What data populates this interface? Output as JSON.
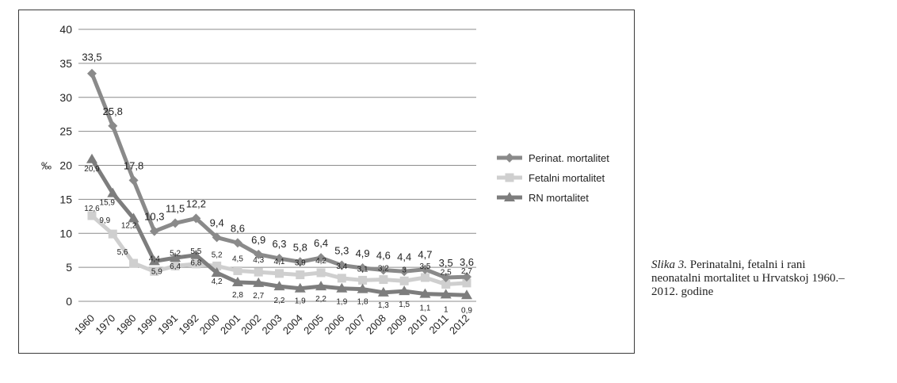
{
  "chart_data": {
    "type": "line",
    "ylabel": "‰",
    "ylim": [
      0,
      40
    ],
    "yticks": [
      0,
      5,
      10,
      15,
      20,
      25,
      30,
      35,
      40
    ],
    "grid": true,
    "legend_position": "right",
    "categories": [
      "1960",
      "1970",
      "1980",
      "1990",
      "1991",
      "1992",
      "2000",
      "2001",
      "2002",
      "2003",
      "2004",
      "2005",
      "2006",
      "2007",
      "2008",
      "2009",
      "2010",
      "2011",
      "2012"
    ],
    "series": [
      {
        "name": "Perinat. mortalitet",
        "marker": "diamond",
        "color": "#8a8a8a",
        "values": [
          33.5,
          25.8,
          17.8,
          10.3,
          11.5,
          12.2,
          9.4,
          8.6,
          6.9,
          6.3,
          5.8,
          6.4,
          5.3,
          4.9,
          4.6,
          4.4,
          4.7,
          3.5,
          3.6
        ],
        "labels": [
          "33,5",
          "25,8",
          "17,8",
          "10,3",
          "11,5",
          "12,2",
          "9,4",
          "8,6",
          "6,9",
          "6,3",
          "5,8",
          "6,4",
          "5,3",
          "4,9",
          "4,6",
          "4,4",
          "4,7",
          "3,5",
          "3,6"
        ]
      },
      {
        "name": "Fetalni mortalitet",
        "marker": "square",
        "color": "#cfcfcf",
        "values": [
          12.6,
          9.9,
          5.6,
          4.4,
          5.2,
          5.5,
          5.2,
          4.5,
          4.3,
          4.1,
          3.9,
          4.2,
          3.4,
          3.1,
          3.2,
          3.0,
          3.5,
          2.5,
          2.7
        ],
        "labels": [
          "12,6",
          "9,9",
          "5,6",
          "4,4",
          "5,2",
          "5,5",
          "5,2",
          "4,5",
          "4,3",
          "4,1",
          "3,9",
          "4,2",
          "3,4",
          "3,1",
          "3,2",
          "3",
          "3,5",
          "2,5",
          "2,7"
        ]
      },
      {
        "name": "RN mortalitet",
        "marker": "triangle",
        "color": "#7d7d7d",
        "values": [
          20.9,
          15.9,
          12.2,
          5.9,
          6.4,
          6.8,
          4.2,
          2.8,
          2.7,
          2.2,
          1.9,
          2.2,
          1.9,
          1.8,
          1.3,
          1.5,
          1.1,
          1.0,
          0.9
        ],
        "labels": [
          "20,9",
          "15,9",
          "12,2",
          "5,9",
          "6,4",
          "6,8",
          "4,2",
          "2,8",
          "2,7",
          "2,2",
          "1,9",
          "2,2",
          "1,9",
          "1,8",
          "1,3",
          "1,5",
          "1,1",
          "1",
          "0,9"
        ]
      }
    ]
  },
  "caption": {
    "label": "Slika 3.",
    "line1": " Perinatalni, fetalni i rani",
    "line2": "neonatalni mortalitet u Hrvatskoj 1960.–",
    "line3": "2012. godine"
  }
}
